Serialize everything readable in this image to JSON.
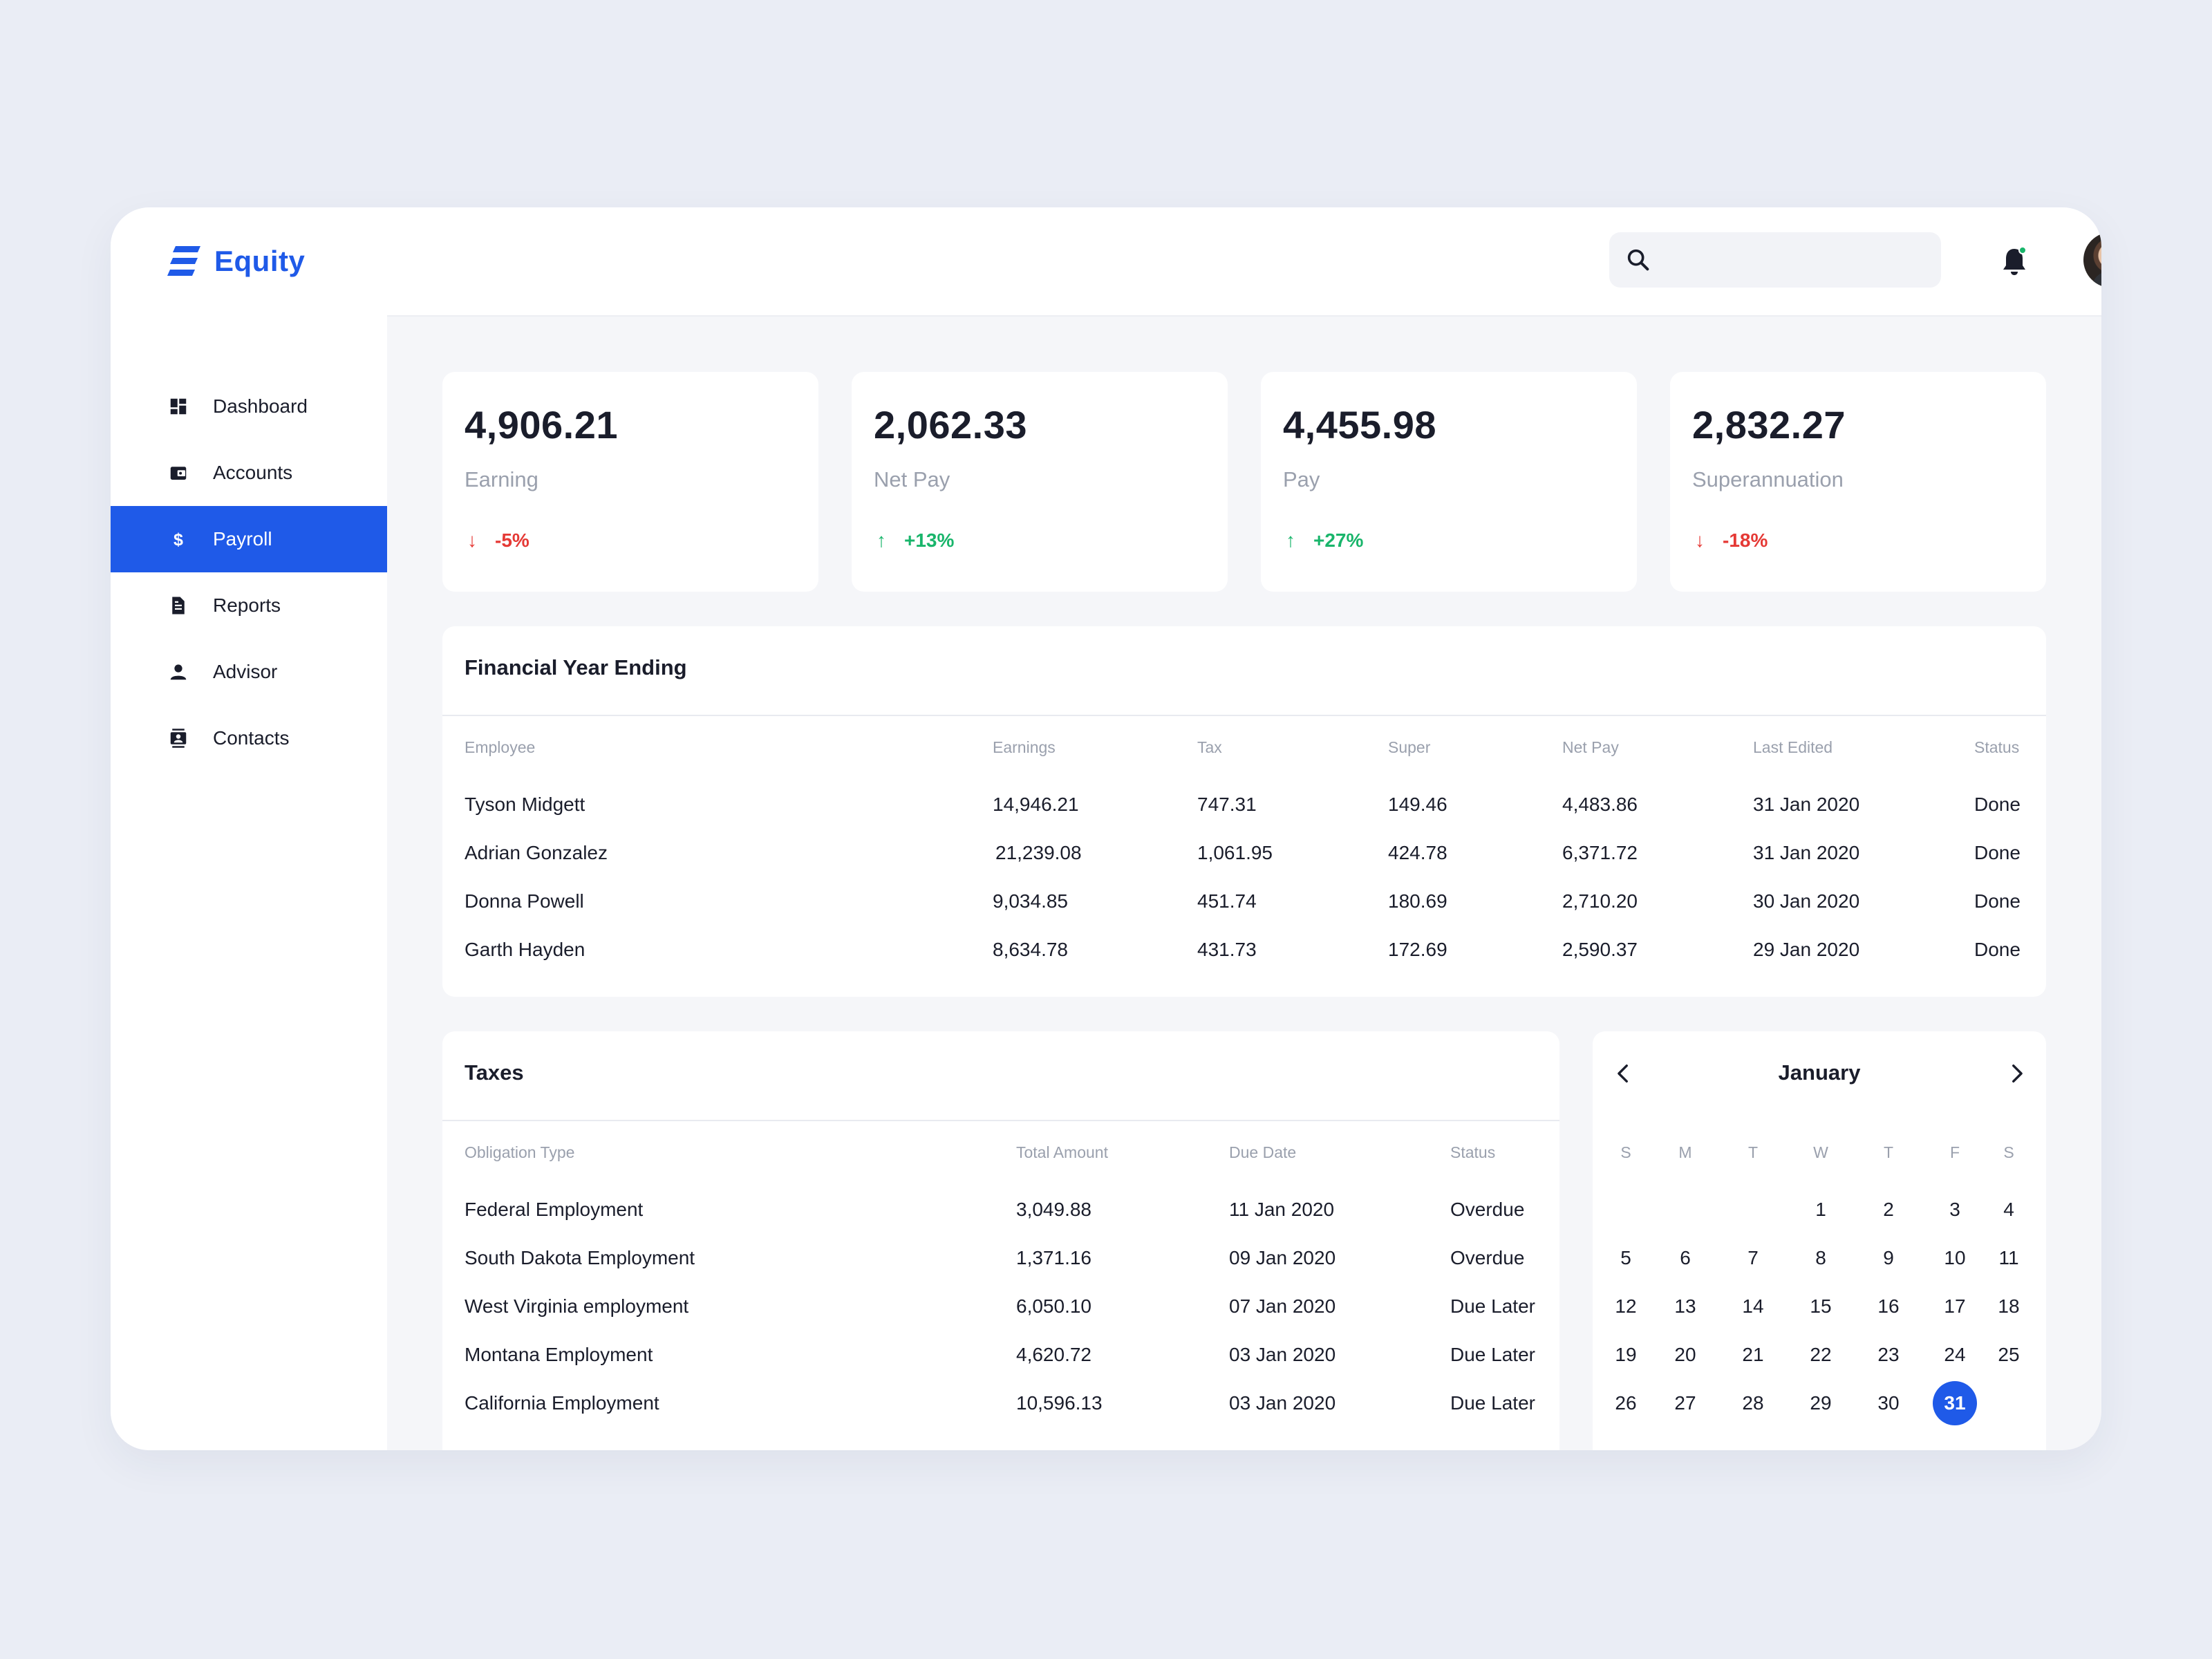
{
  "app": {
    "name": "Equity",
    "brand_color": "#1f5ae8"
  },
  "sidebar": {
    "items": [
      {
        "label": "Dashboard",
        "icon": "dashboard-icon",
        "active": false
      },
      {
        "label": "Accounts",
        "icon": "wallet-icon",
        "active": false
      },
      {
        "label": "Payroll",
        "icon": "dollar-icon",
        "active": true
      },
      {
        "label": "Reports",
        "icon": "document-icon",
        "active": false
      },
      {
        "label": "Advisor",
        "icon": "person-icon",
        "active": false
      },
      {
        "label": "Contacts",
        "icon": "contacts-icon",
        "active": false
      }
    ]
  },
  "header": {
    "search": {
      "value": "",
      "placeholder": ""
    },
    "notification_dot_color": "#19b56b"
  },
  "stats": [
    {
      "value": "4,906.21",
      "label": "Earning",
      "change": "-5%",
      "direction": "down"
    },
    {
      "value": "2,062.33",
      "label": "Net Pay",
      "change": "+13%",
      "direction": "up"
    },
    {
      "value": "4,455.98",
      "label": "Pay",
      "change": "+27%",
      "direction": "up"
    },
    {
      "value": "2,832.27",
      "label": "Superannuation",
      "change": "-18%",
      "direction": "down"
    }
  ],
  "financial": {
    "title": "Financial Year Ending",
    "columns": [
      "Employee",
      "Earnings",
      "Tax",
      "Super",
      "Net Pay",
      "Last Edited",
      "Status"
    ],
    "rows": [
      [
        "Tyson Midgett",
        "14,946.21",
        "747.31",
        "149.46",
        "4,483.86",
        "31 Jan 2020",
        "Done"
      ],
      [
        "Adrian Gonzalez",
        "21,239.08",
        "1,061.95",
        "424.78",
        "6,371.72",
        "31 Jan 2020",
        "Done"
      ],
      [
        "Donna Powell",
        "9,034.85",
        "451.74",
        "180.69",
        "2,710.20",
        "30 Jan 2020",
        "Done"
      ],
      [
        "Garth Hayden",
        "8,634.78",
        "431.73",
        "172.69",
        "2,590.37",
        "29 Jan 2020",
        "Done"
      ]
    ]
  },
  "taxes": {
    "title": "Taxes",
    "columns": [
      "Obligation Type",
      "Total Amount",
      "Due Date",
      "Status"
    ],
    "rows": [
      [
        "Federal Employment",
        "3,049.88",
        "11 Jan 2020",
        "Overdue"
      ],
      [
        "South Dakota Employment",
        "1,371.16",
        "09 Jan 2020",
        "Overdue"
      ],
      [
        "West Virginia employment",
        "6,050.10",
        "07 Jan 2020",
        "Due Later"
      ],
      [
        "Montana Employment",
        "4,620.72",
        "03 Jan 2020",
        "Due Later"
      ],
      [
        "California Employment",
        "10,596.13",
        "03 Jan 2020",
        "Due Later"
      ]
    ]
  },
  "calendar": {
    "month": "January",
    "weekdays": [
      "S",
      "M",
      "T",
      "W",
      "T",
      "F",
      "S"
    ],
    "weeks": [
      [
        "",
        "",
        "",
        "1",
        "2",
        "3",
        "4"
      ],
      [
        "5",
        "6",
        "7",
        "8",
        "9",
        "10",
        "11"
      ],
      [
        "12",
        "13",
        "14",
        "15",
        "16",
        "17",
        "18"
      ],
      [
        "19",
        "20",
        "21",
        "22",
        "23",
        "24",
        "25"
      ],
      [
        "26",
        "27",
        "28",
        "29",
        "30",
        "31",
        ""
      ]
    ],
    "selected": "31"
  }
}
